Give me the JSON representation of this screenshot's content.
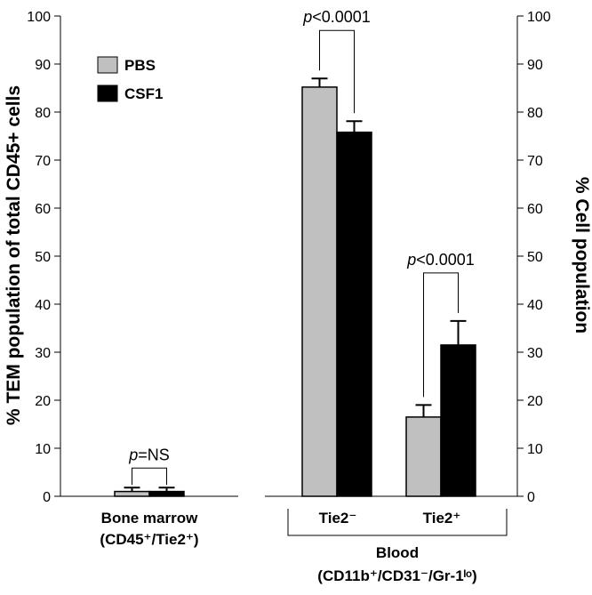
{
  "chart_data": {
    "type": "bar",
    "title": "",
    "ylabel": "% TEM population of total CD45+ cells",
    "ylabel_right": "% Cell population",
    "ylim": [
      0,
      100
    ],
    "yticks": [
      0,
      10,
      20,
      30,
      40,
      50,
      60,
      70,
      80,
      90,
      100
    ],
    "series": [
      {
        "name": "PBS",
        "color": "#c0c0c0"
      },
      {
        "name": "CSF1",
        "color": "#000000"
      }
    ],
    "panels": [
      {
        "name": "bone-marrow",
        "label_line1": "Bone marrow",
        "label_line2": "(CD45⁺/Tie2⁺)",
        "groups": [
          {
            "name": "",
            "values": [
              1.0,
              1.0
            ],
            "errors": [
              0.8,
              0.8
            ]
          }
        ],
        "comparisons": [
          {
            "group": 0,
            "p_prefix": "p",
            "p_suffix": "=NS"
          }
        ]
      },
      {
        "name": "blood",
        "groups": [
          {
            "name": "Tie2⁻",
            "values": [
              85.2,
              75.8
            ],
            "errors": [
              1.8,
              2.3
            ]
          },
          {
            "name": "Tie2⁺",
            "values": [
              16.5,
              31.5
            ],
            "errors": [
              2.5,
              5.0
            ]
          }
        ],
        "comparisons": [
          {
            "group": 0,
            "p_prefix": "p",
            "p_suffix": "<0.0001"
          },
          {
            "group": 1,
            "p_prefix": "p",
            "p_suffix": "<0.0001"
          }
        ],
        "bracket_label_line1": "Blood",
        "bracket_label_line2": "(CD11b⁺/CD31⁻/Gr-1ˡᵒ)"
      }
    ]
  }
}
